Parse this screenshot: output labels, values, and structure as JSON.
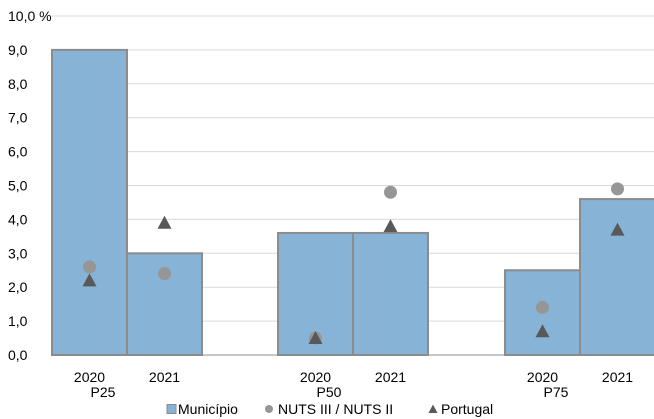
{
  "chart_data": {
    "type": "bar",
    "groups": [
      {
        "label": "P25",
        "categories": [
          "2020",
          "2021"
        ]
      },
      {
        "label": "P50",
        "categories": [
          "2020",
          "2021"
        ]
      },
      {
        "label": "P75",
        "categories": [
          "2020",
          "2021"
        ]
      }
    ],
    "series": [
      {
        "name": "Município",
        "type": "bar",
        "values": [
          9.0,
          3.0,
          3.6,
          3.6,
          2.5,
          4.6
        ]
      },
      {
        "name": "NUTS III / NUTS II",
        "type": "scatter",
        "marker": "circle",
        "values": [
          2.6,
          2.4,
          0.5,
          4.8,
          1.4,
          4.9
        ]
      },
      {
        "name": "Portugal",
        "type": "scatter",
        "marker": "triangle",
        "values": [
          2.2,
          3.9,
          0.5,
          3.8,
          0.7,
          3.7
        ]
      }
    ],
    "y_ticks": [
      "0,0",
      "1,0",
      "2,0",
      "3,0",
      "4,0",
      "5,0",
      "6,0",
      "7,0",
      "8,0",
      "9,0",
      "10,0 %"
    ],
    "ylim": [
      0,
      10
    ],
    "grid": true,
    "legend_position": "bottom",
    "colors": {
      "bar_fill": "#86b3d6",
      "bar_stroke": "#8c8c8c",
      "circle": "#969696",
      "triangle": "#595959",
      "grid": "#d9d9d9",
      "axis": "#8c8c8c"
    }
  }
}
